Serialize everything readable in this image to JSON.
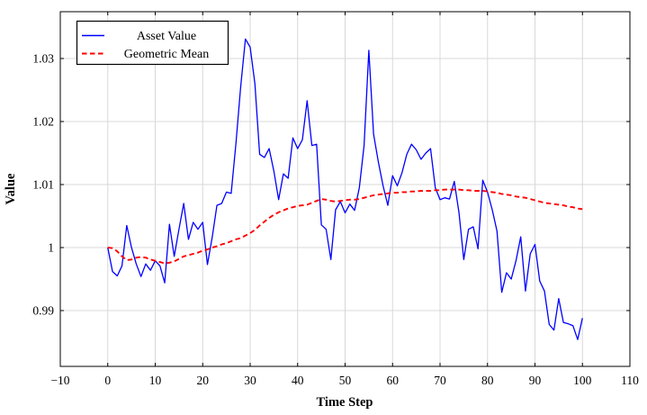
{
  "chart_data": {
    "type": "line",
    "title": "",
    "xlabel": "Time Step",
    "ylabel": "Value",
    "xlim": [
      -10,
      110
    ],
    "ylim": [
      0.98114,
      1.03743
    ],
    "xticks": [
      -10,
      0,
      10,
      20,
      30,
      40,
      50,
      60,
      70,
      80,
      90,
      100,
      110
    ],
    "xtick_labels": [
      "−10",
      "0",
      "10",
      "20",
      "30",
      "40",
      "50",
      "60",
      "70",
      "80",
      "90",
      "100",
      "110"
    ],
    "yticks": [
      0.99,
      1.0,
      1.01,
      1.02,
      1.03
    ],
    "ytick_labels": [
      "0.99",
      "1",
      "1.01",
      "1.02",
      "1.03"
    ],
    "grid": true,
    "grid_color": "#d8d8d8",
    "axis_color": "#000000",
    "background": "#ffffff",
    "legend_position": "top-left",
    "x_start": 0,
    "x_step": 1,
    "series": [
      {
        "name": "Asset Value",
        "color": "#0000ff",
        "line_style": "solid",
        "values": [
          1.0,
          0.9962,
          0.9955,
          0.9971,
          1.0035,
          1.0,
          0.9974,
          0.9954,
          0.9974,
          0.9964,
          0.9979,
          0.9971,
          0.9944,
          1.0037,
          0.9986,
          1.0029,
          1.007,
          1.0013,
          1.004,
          1.0029,
          1.004,
          0.9973,
          1.0016,
          1.0067,
          1.007,
          1.0088,
          1.0086,
          1.0165,
          1.0255,
          1.0331,
          1.0318,
          1.026,
          1.0148,
          1.0143,
          1.0157,
          1.0121,
          1.0076,
          1.0117,
          1.011,
          1.0174,
          1.0157,
          1.0171,
          1.0233,
          1.0162,
          1.0164,
          1.0036,
          1.0029,
          0.9981,
          1.006,
          1.0073,
          1.0055,
          1.0069,
          1.0059,
          1.0095,
          1.0162,
          1.0313,
          1.018,
          1.0136,
          1.0098,
          1.0067,
          1.0114,
          1.0098,
          1.0119,
          1.0148,
          1.0164,
          1.0155,
          1.014,
          1.015,
          1.0157,
          1.0095,
          1.0076,
          1.0079,
          1.0077,
          1.0105,
          1.0055,
          0.9981,
          1.0029,
          1.0033,
          0.9998,
          1.0107,
          1.0088,
          1.006,
          1.0026,
          0.9929,
          0.996,
          0.995,
          0.9979,
          1.0017,
          0.9931,
          0.999,
          1.0005,
          0.9947,
          0.9931,
          0.9878,
          0.9869,
          0.9919,
          0.9881,
          0.9879,
          0.9876,
          0.9854,
          0.9888
        ]
      },
      {
        "name": "Geometric Mean",
        "color": "#ff0000",
        "line_style": "dashed",
        "values": [
          1.0,
          0.9999,
          0.9994,
          0.9986,
          0.998,
          0.9981,
          0.9984,
          0.9985,
          0.9984,
          0.9981,
          0.9979,
          0.9977,
          0.9975,
          0.9976,
          0.9978,
          0.9982,
          0.9986,
          0.9988,
          0.999,
          0.9992,
          0.9995,
          0.9997,
          1.0,
          1.0002,
          1.0005,
          1.0007,
          1.001,
          1.0013,
          1.0015,
          1.0019,
          1.0023,
          1.0028,
          1.0035,
          1.0041,
          1.0047,
          1.0052,
          1.0056,
          1.0059,
          1.0062,
          1.0064,
          1.0066,
          1.0067,
          1.0068,
          1.0071,
          1.0074,
          1.0077,
          1.0076,
          1.0074,
          1.0073,
          1.0074,
          1.0075,
          1.0076,
          1.0076,
          1.0077,
          1.0079,
          1.0081,
          1.0083,
          1.0084,
          1.0085,
          1.0086,
          1.0087,
          1.0087,
          1.0088,
          1.0088,
          1.0089,
          1.0089,
          1.009,
          1.009,
          1.009,
          1.0091,
          1.0091,
          1.0092,
          1.0092,
          1.0092,
          1.0092,
          1.0091,
          1.0091,
          1.009,
          1.009,
          1.009,
          1.0089,
          1.0088,
          1.0087,
          1.0085,
          1.0084,
          1.0083,
          1.0081,
          1.008,
          1.0079,
          1.0077,
          1.0075,
          1.0073,
          1.0071,
          1.007,
          1.0069,
          1.0068,
          1.0067,
          1.0065,
          1.0064,
          1.0062,
          1.0061
        ]
      }
    ]
  }
}
